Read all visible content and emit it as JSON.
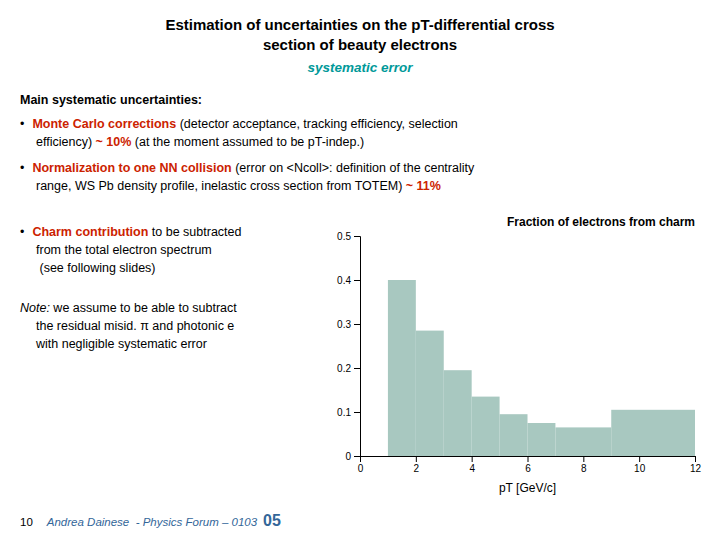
{
  "chart_data": {
    "type": "histogram",
    "title": "Fraction of electrons from charm",
    "xlabel": "pT [GeV/c]",
    "bins": [
      1,
      2,
      3,
      4,
      5,
      6,
      7,
      9,
      12
    ],
    "values": [
      0.4,
      0.285,
      0.195,
      0.135,
      0.095,
      0.075,
      0.065,
      0.105
    ],
    "color": "#a8c8c0",
    "xlim": [
      0,
      12
    ],
    "ylim": [
      0,
      0.5
    ],
    "xticks": [
      0,
      2,
      4,
      6,
      8,
      10,
      12
    ],
    "yticks": [
      0,
      0.1,
      0.2,
      0.3,
      0.4,
      0.5
    ],
    "grid": false,
    "annotations": [
      [
        {
          "text": "Estimation of uncertainties on the pT-differential cross",
          "color": "#000000"
        }
      ],
      [
        {
          "text": "section of beauty electrons",
          "color": "#000000"
        }
      ],
      [
        {
          "text": "systematic error",
          "color": "#009999"
        }
      ],
      [
        {
          "text": "Main systematic uncertainties:"
        }
      ],
      [
        {
          "text": "•"
        },
        {
          "text": "Monte Carlo corrections",
          "color": "#cc2200"
        },
        {
          "text": " (detector acceptance, tracking efficiency, selection"
        }
      ],
      [
        {
          "text": "efficiency) "
        },
        {
          "text": "~ 10%",
          "color": "#cc2200"
        },
        {
          "text": " (at the moment assumed to be pT-indep.)"
        }
      ],
      [
        {
          "text": "•"
        },
        {
          "text": "Normalization to one NN collision",
          "color": "#cc2200"
        },
        {
          "text": " (error on <Ncoll>: definition of the centrality"
        }
      ],
      [
        {
          "text": "range, WS Pb density profile, inelastic cross section from TOTEM) "
        },
        {
          "text": "~ 11%",
          "color": "#cc2200"
        }
      ],
      [
        {
          "text": "•"
        },
        {
          "text": "Charm contribution",
          "color": "#cc2200"
        },
        {
          "text": " to be subtracted"
        }
      ],
      [
        {
          "text": "from the total electron spectrum"
        }
      ],
      [
        {
          "text": " (see following slides)"
        }
      ],
      [
        {
          "text": "Note:"
        },
        {
          "text": " we assume to be able to subtract"
        }
      ],
      [
        {
          "text": "the residual misid. π and photonic e"
        }
      ],
      [
        {
          "text": "with negligible systematic error"
        }
      ],
      [
        {
          "text": "10"
        },
        {
          "text": "Andrea Dainese  - Physics Forum – 0103",
          "color": "#336699"
        },
        {
          "text": "05",
          "color": "#336699"
        }
      ]
    ]
  }
}
